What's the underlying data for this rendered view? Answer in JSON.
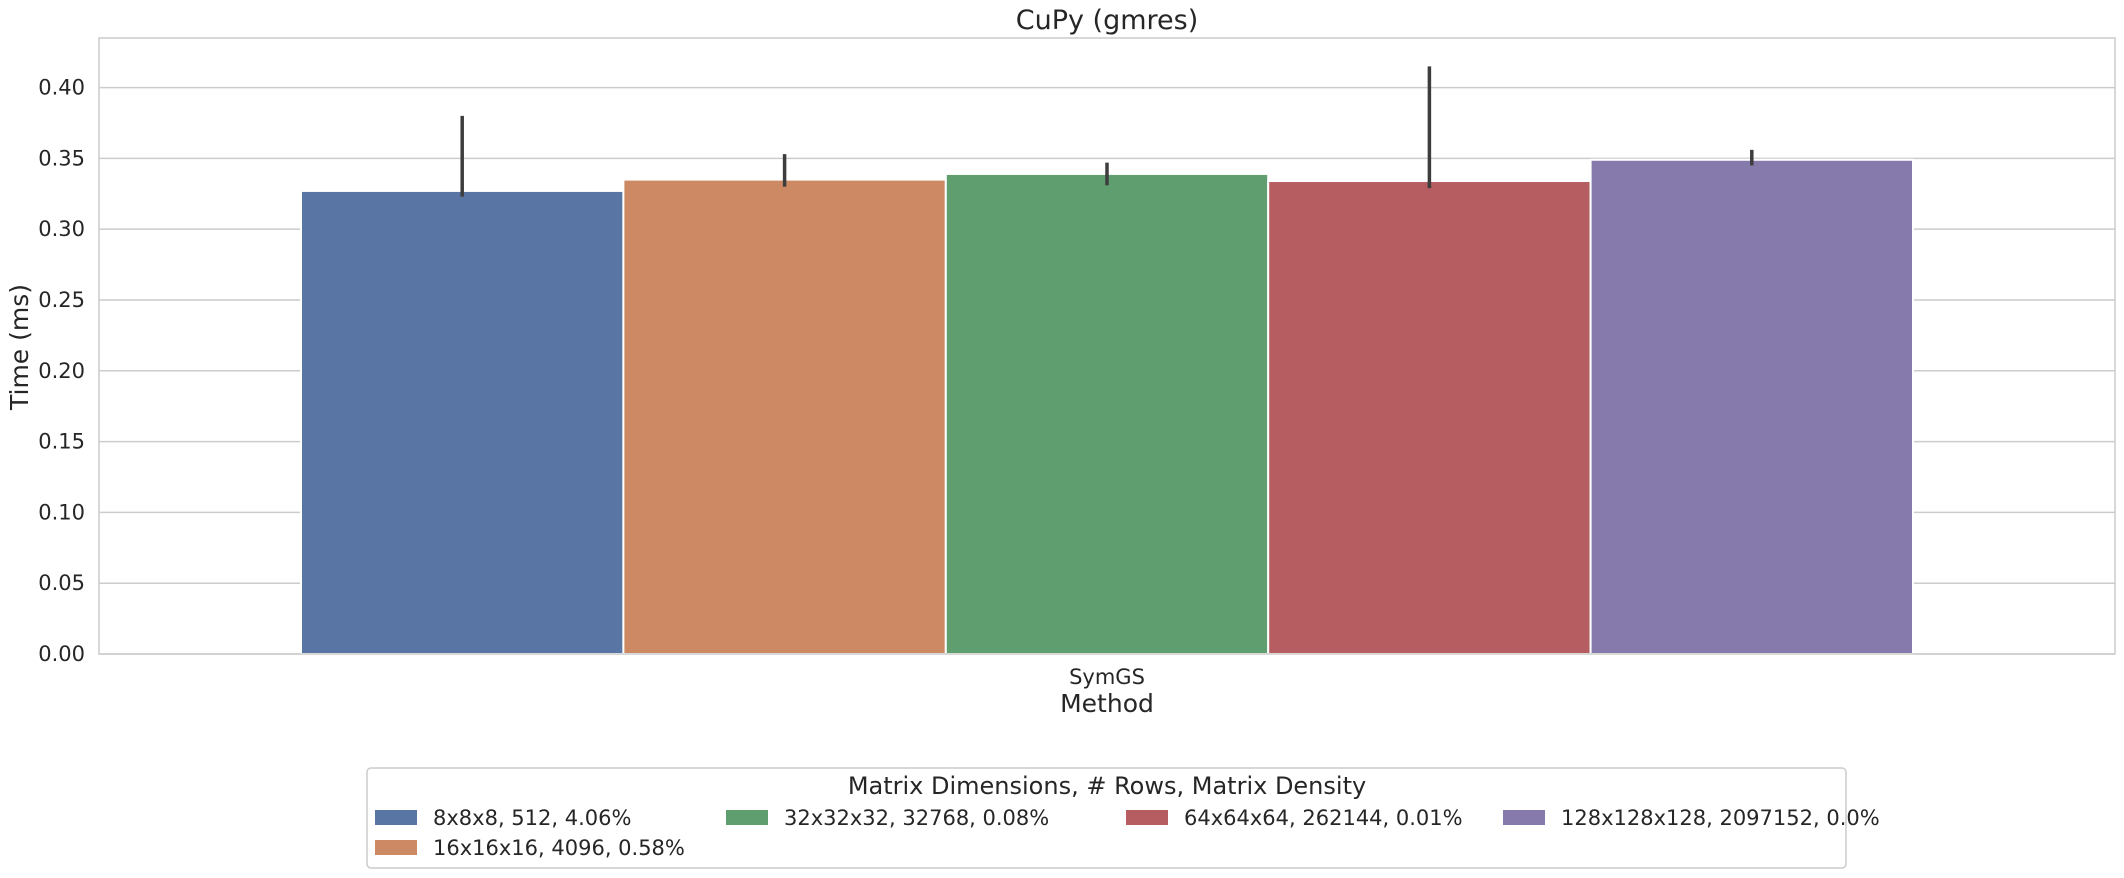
{
  "chart_data": {
    "type": "bar",
    "title": "CuPy (gmres)",
    "xlabel": "Method",
    "ylabel": "Time (ms)",
    "categories": [
      "SymGS"
    ],
    "ylim": [
      0,
      0.435
    ],
    "yticks": [
      "0.00",
      "0.05",
      "0.10",
      "0.15",
      "0.20",
      "0.25",
      "0.30",
      "0.35",
      "0.40"
    ],
    "grid": true,
    "legend": {
      "title": "Matrix Dimensions, # Rows, Matrix Density",
      "placement": "bottom-center"
    },
    "series": [
      {
        "name": "8x8x8, 512, 4.06%",
        "values": [
          0.327
        ],
        "err_low": [
          0.323
        ],
        "err_high": [
          0.38
        ],
        "color": "#5975a4"
      },
      {
        "name": "16x16x16, 4096, 0.58%",
        "values": [
          0.335
        ],
        "err_low": [
          0.33
        ],
        "err_high": [
          0.353
        ],
        "color": "#cc8963"
      },
      {
        "name": "32x32x32, 32768, 0.08%",
        "values": [
          0.339
        ],
        "err_low": [
          0.331
        ],
        "err_high": [
          0.347
        ],
        "color": "#5f9e6e"
      },
      {
        "name": "64x64x64, 262144, 0.01%",
        "values": [
          0.334
        ],
        "err_low": [
          0.329
        ],
        "err_high": [
          0.415
        ],
        "color": "#b55d60"
      },
      {
        "name": "128x128x128, 2097152, 0.0%",
        "values": [
          0.349
        ],
        "err_low": [
          0.345
        ],
        "err_high": [
          0.356
        ],
        "color": "#857aab"
      }
    ]
  }
}
